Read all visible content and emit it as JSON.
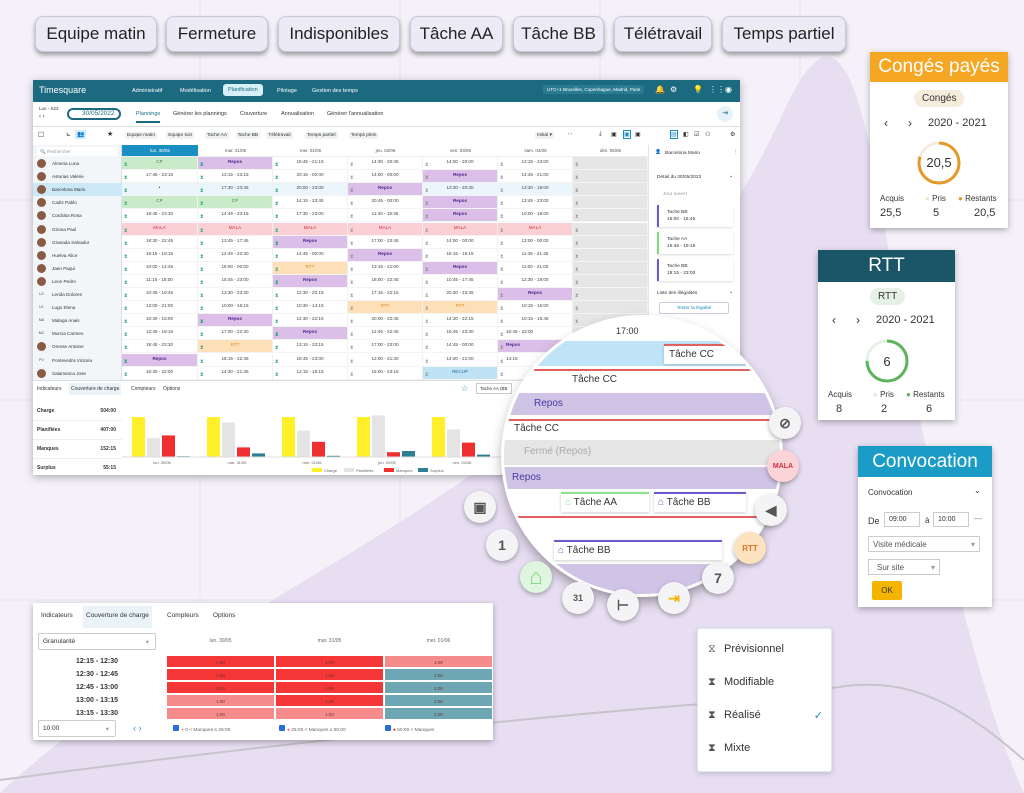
{
  "tags": [
    "Equipe matin",
    "Fermeture",
    "Indisponibles",
    "Tâche AA",
    "Tâche BB",
    "Télétravail",
    "Temps partiel"
  ],
  "app": {
    "logo": "Timesquare",
    "nav": [
      "Administratif",
      "Modélisation",
      "Planification",
      "Pilotage",
      "Gestion des temps"
    ],
    "nav_active": "Planification",
    "timezone": "UTC+1 Bruxelles, Copenhague, Madrid, Paris",
    "week": "Lun - S22",
    "date": "30/05/2022",
    "tabs": [
      "Plannings",
      "Générer les plannings",
      "Couverture",
      "Annualisation",
      "Générer l'annualisation"
    ],
    "filters": [
      "Equipe matin",
      "Equipe soir",
      "Tache AA",
      "Tache BB",
      "Télétravail",
      "Temps partiel",
      "Temps plein"
    ],
    "version_select": "Initial",
    "search_placeholder": "Rechercher",
    "days": [
      "lun. 30/05",
      "mar. 31/05",
      "mer. 01/06",
      "jeu. 02/06",
      "ven. 03/06",
      "sam. 04/06",
      "dim. 05/06"
    ],
    "employees": [
      {
        "name": "Almeria Luna",
        "initials": "",
        "cells": [
          "CP",
          "Repos",
          "15:45 - 21:15",
          "14:30 - 20:45",
          "14:00 - 20:00",
          "13:15 - 23:00",
          ""
        ]
      },
      {
        "name": "Asturias Valérie",
        "initials": "",
        "cells": [
          "17:45 - 23:15",
          "13:15 - 23:15",
          "20:15 - 00:00",
          "14:00 - 00:00",
          "Repos",
          "14:45 - 21:00",
          ""
        ]
      },
      {
        "name": "Barcelona Mario",
        "initials": "",
        "selected": true,
        "cells": [
          "•",
          "17:30 - 23:45",
          "20:00 - 23:00",
          "Repos",
          "13:30 - 20:30",
          "13:30 - 19:00",
          ""
        ]
      },
      {
        "name": "Cadiz Pablo",
        "initials": "",
        "cells": [
          "CP",
          "CP",
          "14:15 - 23:45",
          "20:45 - 00:00",
          "Repos",
          "13:45 - 23:00",
          ""
        ]
      },
      {
        "name": "Cordoba Rosa",
        "initials": "",
        "cells": [
          "19:45 - 23:30",
          "14:45 - 23:15",
          "17:30 - 23:00",
          "11:30 - 19:45",
          "Repos",
          "10:00 - 19:00",
          ""
        ]
      },
      {
        "name": "Girona Paul",
        "initials": "",
        "cells": [
          "MALA",
          "MALA",
          "MALA",
          "MALA",
          "MALA",
          "MALA",
          ""
        ]
      },
      {
        "name": "Granada Salvador",
        "initials": "",
        "cells": [
          "18:30 - 22:45",
          "13:45 - 17:45",
          "Repos",
          "17:00 - 23:45",
          "14:00 - 00:00",
          "13:00 - 00:00",
          ""
        ]
      },
      {
        "name": "Huelva Alice",
        "initials": "",
        "cells": [
          "15:15 - 18:15",
          "12:45 - 22:30",
          "14:45 - 00:00",
          "Repos",
          "16:15 - 19:15",
          "11:45 - 21:45",
          ""
        ]
      },
      {
        "name": "Jaen Paqui",
        "initials": "",
        "cells": [
          "10:00 - 14:45",
          "16:00 - 00:00",
          "RTT",
          "13:15 - 21:00",
          "Repos",
          "11:00 - 21:00",
          ""
        ]
      },
      {
        "name": "Leon Pedro",
        "initials": "",
        "cells": [
          "11:15 - 18:00",
          "15:45 - 23:00",
          "Repos",
          "18:00 - 22:45",
          "10:45 - 17:45",
          "12:30 - 19:00",
          ""
        ]
      },
      {
        "name": "Lerida Dolores",
        "initials": "LD",
        "cells": [
          "10:45 - 19:45",
          "13:30 - 23:30",
          "12:30 - 20:15",
          "17:15 - 22:15",
          "20:30 - 23:45",
          "Repos",
          ""
        ]
      },
      {
        "name": "Lugo Elena",
        "initials": "LE",
        "cells": [
          "13:00 - 21:00",
          "10:00 - 16:15",
          "10:30 - 14:15",
          "RTT",
          "RTT",
          "10:15 - 15:00",
          ""
        ]
      },
      {
        "name": "Malaga Anais",
        "initials": "MA",
        "cells": [
          "10:30 - 16:00",
          "Repos",
          "14:30 - 22:15",
          "20:00 - 22:45",
          "14:30 - 22:15",
          "10:15 - 15:45",
          ""
        ]
      },
      {
        "name": "Murcia Carmen",
        "initials": "MC",
        "cells": [
          "13:45 - 18:15",
          "17:00 - 22:30",
          "Repos",
          "12:45 - 22:45",
          "15:45 - 23:30",
          "16:45 - 23:00",
          ""
        ]
      },
      {
        "name": "Orense Antoine",
        "initials": "",
        "cells": [
          "19:45 - 23:30",
          "RTT",
          "13:15 - 23:15",
          "17:00 - 23:00",
          "14:45 - 00:00",
          "Repos",
          ""
        ]
      },
      {
        "name": "Pontevedra Victoria",
        "initials": "PV",
        "cells": [
          "Repos",
          "18:15 - 22:45",
          "18:45 - 23:00",
          "12:00 - 21:30",
          "14:00 - 21:00",
          "14:15",
          ""
        ]
      },
      {
        "name": "Salamanca Jose",
        "initials": "",
        "cells": [
          "15:30 - 22:00",
          "14:30 - 21:45",
          "12:15 - 18:15",
          "15:00 - 23:15",
          "RECUP",
          "",
          ""
        ]
      }
    ],
    "right_panel": {
      "employee": "Barcelona Mario",
      "detail_title": "Détail du 30/05/2022",
      "day_type": "Jour ouvert",
      "tasks": [
        {
          "name": "Tache BB",
          "time": "15:00 - 16:45",
          "color": "#6a5acd"
        },
        {
          "name": "Tache AA",
          "time": "16:45 - 19:15",
          "color": "#7ed87e"
        },
        {
          "name": "Tache BB",
          "time": "19:15 - 23:00",
          "color": "#6a5acd"
        }
      ],
      "illegal_title": "Liste des illégalités",
      "test_button": "Tester la légalité"
    },
    "bottom": {
      "tabs": [
        "Indicateurs",
        "Couverture de charge",
        "Compteurs",
        "Options"
      ],
      "task_select": "Tache AA (BB",
      "stats": [
        {
          "label": "Charge",
          "value": "504:00"
        },
        {
          "label": "Planifiées",
          "value": "407:00"
        },
        {
          "label": "Manques",
          "value": "152:15"
        },
        {
          "label": "Surplus",
          "value": "55:15"
        }
      ]
    }
  },
  "chart_data": {
    "type": "bar",
    "categories": [
      "lun. 30/05",
      "mar. 31/05",
      "mer. 01/06",
      "jeu. 02/06",
      "ven. 03/06"
    ],
    "series": [
      {
        "name": "Charge",
        "color": "#fff02a",
        "values": [
          100,
          100,
          100,
          100,
          100
        ]
      },
      {
        "name": "Planifiées",
        "color": "#e4e4e4",
        "values": [
          47,
          86,
          66,
          104,
          69
        ]
      },
      {
        "name": "Manques",
        "color": "#f03030",
        "values": [
          54,
          24,
          38,
          12,
          36
        ]
      },
      {
        "name": "Surplus",
        "color": "#2e7f93",
        "values": [
          2,
          9,
          3,
          15,
          6
        ]
      }
    ],
    "legend": "bottom-right",
    "grid": false
  },
  "magnifier": {
    "time": "17:00",
    "task_cc": "Tâche CC",
    "repos": "Repos",
    "closed": "Fermé (Repos)",
    "task_aa": "Tâche AA",
    "task_bb": "Tâche BB"
  },
  "float_icons": [
    "calendar-dot",
    "calendar-1",
    "home",
    "calendar-31",
    "tree",
    "import",
    "calendar-7",
    "RTT",
    "speaker",
    "MALA",
    "person-off"
  ],
  "conges": {
    "title": "Congés payés",
    "pill": "Congés",
    "period": "2020 - 2021",
    "value": "20,5",
    "labels": [
      "Acquis",
      "Pris",
      "Restants"
    ],
    "values": [
      "25,5",
      "5",
      "20,5"
    ],
    "fraction": 0.8,
    "color": "#f5a623"
  },
  "rtt": {
    "title": "RTT",
    "pill": "RTT",
    "period": "2020 - 2021",
    "value": "6",
    "labels": [
      "Acquis",
      "Pris",
      "Restants"
    ],
    "values": [
      "8",
      "2",
      "6"
    ],
    "fraction": 0.75,
    "color": "#5fb35f"
  },
  "convocation": {
    "title": "Convocation",
    "section": "Convocation",
    "from_label": "De",
    "from": "09:00",
    "to_label": "à",
    "to": "10:00",
    "type": "Visite médicale",
    "place": "Sur site",
    "ok": "OK"
  },
  "coverage": {
    "tabs": [
      "Indicateurs",
      "Couverture de charge",
      "Compteurs",
      "Options"
    ],
    "granularity": "Granularité",
    "days": [
      "lun. 30/05",
      "mar. 31/05",
      "mer. 01/06"
    ],
    "rows": [
      {
        "slot": "12:15 - 12:30",
        "values": [
          "1:00",
          "1:00",
          "1:00"
        ],
        "levels": [
          "high",
          "high",
          "low"
        ]
      },
      {
        "slot": "12:30 - 12:45",
        "values": [
          "1:00",
          "1:00",
          "1:00"
        ],
        "levels": [
          "high",
          "high",
          "ok"
        ]
      },
      {
        "slot": "12:45 - 13:00",
        "values": [
          "1:00",
          "1:00",
          "1:00"
        ],
        "levels": [
          "high",
          "high",
          "ok"
        ]
      },
      {
        "slot": "13:00 - 13:15",
        "values": [
          "1:00",
          "1:00",
          "1:00"
        ],
        "levels": [
          "low",
          "high",
          "ok"
        ]
      },
      {
        "slot": "13:15 - 13:30",
        "values": [
          "1:00",
          "1:00",
          "1:00"
        ],
        "levels": [
          "low",
          "low",
          "ok"
        ]
      }
    ],
    "time_select": "10:00",
    "legend": [
      "0 < Manques ≤ 25:00",
      "25:00 < Manques ≤ 50:00",
      "50:00 < Manques"
    ]
  },
  "mode_menu": {
    "items": [
      "Prévisionnel",
      "Modifiable",
      "Réalisé",
      "Mixte"
    ],
    "selected": "Réalisé"
  }
}
